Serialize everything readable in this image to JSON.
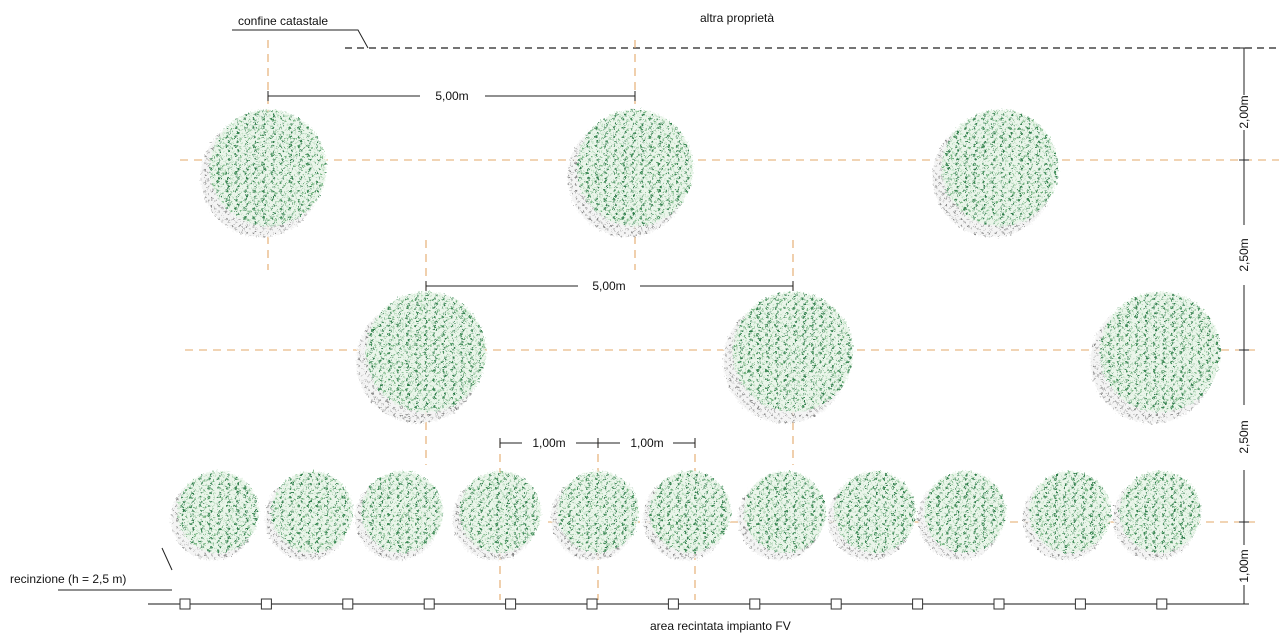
{
  "labels": {
    "cadastral_boundary": "confine catastale",
    "other_property": "altra proprietà",
    "fence": "recinzione (h = 2,5 m)",
    "fenced_area": "area recintata impianto FV"
  },
  "dimensions": {
    "top_row_spacing": "5,00m",
    "middle_row_spacing": "5,00m",
    "hedge_spacing_a": "1,00m",
    "hedge_spacing_b": "1,00m",
    "boundary_to_row1": "2,00m",
    "row1_to_row2": "2,50m",
    "row2_to_row3": "2,50m",
    "row3_to_fence": "1,00m"
  },
  "colors": {
    "axis": "#e3a86a",
    "foliage_light": "#9fd0a6",
    "foliage_dark": "#2f7d4a",
    "shadow": "#8a8a8a",
    "line": "#222222"
  }
}
